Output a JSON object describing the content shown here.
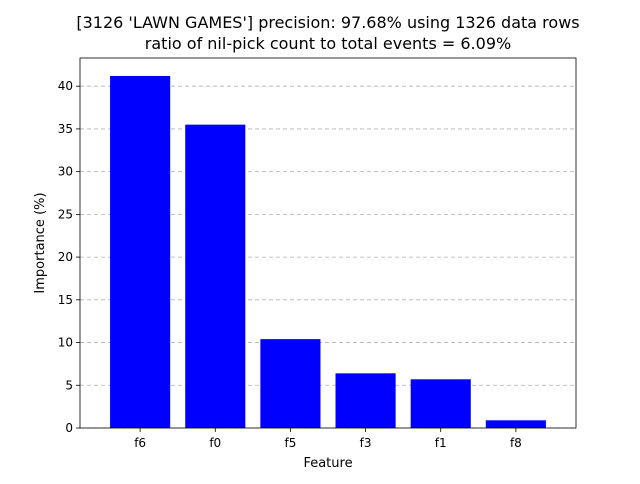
{
  "chart_data": {
    "type": "bar",
    "title_lines": [
      "[3126 'LAWN GAMES'] precision: 97.68% using 1326 data rows",
      "ratio of nil-pick count to total events = 6.09%"
    ],
    "xlabel": "Feature",
    "ylabel": "Importance (%)",
    "categories": [
      "f6",
      "f0",
      "f5",
      "f3",
      "f1",
      "f8"
    ],
    "values": [
      41.2,
      35.5,
      10.4,
      6.4,
      5.7,
      0.9
    ],
    "ylim": [
      0,
      43.3
    ],
    "yticks": [
      0,
      5,
      10,
      15,
      20,
      25,
      30,
      35,
      40
    ],
    "grid": "y-dashed",
    "bar_color": "#0000ff",
    "legend": "none"
  }
}
